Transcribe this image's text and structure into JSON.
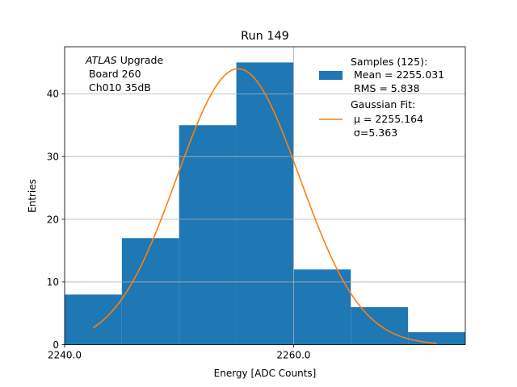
{
  "colors": {
    "bar": "#1f77b4",
    "fit": "#ff7f0e",
    "grid": "#b0b0b0",
    "axis": "#000000"
  },
  "chart_data": {
    "type": "bar",
    "title": "Run 149",
    "xlabel": "Energy [ADC Counts]",
    "ylabel": "Entries",
    "xlim": [
      2240.0,
      2275.0
    ],
    "ylim": [
      0,
      47.5
    ],
    "grid": true,
    "xticks": [
      2240.0,
      2260.0
    ],
    "xtick_labels": [
      "2240.0",
      "2260.0"
    ],
    "yticks": [
      0,
      10,
      20,
      30,
      40
    ],
    "ytick_labels": [
      "0",
      "10",
      "20",
      "30",
      "40"
    ],
    "bins": [
      {
        "low": 2240.0,
        "high": 2245.0,
        "count": 8
      },
      {
        "low": 2245.0,
        "high": 2250.0,
        "count": 17
      },
      {
        "low": 2250.0,
        "high": 2255.0,
        "count": 35
      },
      {
        "low": 2255.0,
        "high": 2260.0,
        "count": 45
      },
      {
        "low": 2260.0,
        "high": 2265.0,
        "count": 12
      },
      {
        "low": 2265.0,
        "high": 2270.0,
        "count": 6
      },
      {
        "low": 2270.0,
        "high": 2275.0,
        "count": 2
      }
    ],
    "fit": {
      "type": "gaussian",
      "mu": 2255.164,
      "sigma": 5.363,
      "amplitude": 44.0,
      "x_start": 2242.5,
      "x_end": 2272.5
    },
    "annotation": {
      "line1_italic": "ATLAS",
      "line1_rest": " Upgrade",
      "line2": " Board 260",
      "line3": " Ch010 35dB"
    },
    "legend": {
      "position": "top-right",
      "samples": {
        "line1": "Samples (125):",
        "line2": " Mean = 2255.031",
        "line3": " RMS = 5.838"
      },
      "fit": {
        "line1": "Gaussian Fit:",
        "line2": " μ = 2255.164",
        "line3": " σ=5.363"
      }
    }
  }
}
